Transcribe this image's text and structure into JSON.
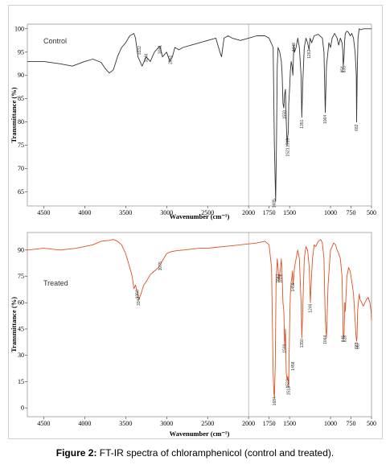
{
  "caption": {
    "label": "Figure 2:",
    "text": " FT-IR spectra of chloramphenicol (control and treated)."
  },
  "chart_data": [
    {
      "type": "line",
      "panel_label": "Control",
      "xlabel": "Wavenumber (cm⁻¹)",
      "ylabel": "Transmittance (%)",
      "xlim": [
        4700,
        500
      ],
      "ylim": [
        62,
        101
      ],
      "x_ticks": [
        4500,
        4000,
        3500,
        3000,
        2500,
        2000,
        1750,
        1500,
        1000,
        750,
        500
      ],
      "y_ticks": [
        100,
        95,
        90,
        85,
        80,
        75,
        70,
        65
      ],
      "y_tick_labels": [
        "100",
        "95",
        "90",
        "85",
        "80",
        "75",
        "70",
        "65"
      ],
      "line_color": "#333333",
      "series": [
        {
          "x": [
            4700,
            4500,
            4300,
            4150,
            4000,
            3900,
            3800,
            3750,
            3700,
            3650,
            3600,
            3550,
            3500,
            3450,
            3400,
            3380,
            3350,
            3300,
            3250,
            3200,
            3150,
            3100,
            3080,
            3050,
            3000,
            2960,
            2930,
            2900,
            2850,
            2800,
            2700,
            2600,
            2500,
            2400,
            2350,
            2330,
            2300,
            2250,
            2200,
            2100,
            2000,
            1900,
            1800,
            1750,
            1700,
            1685,
            1670,
            1660,
            1650,
            1640,
            1620,
            1600,
            1590,
            1580,
            1570,
            1560,
            1550,
            1540,
            1530,
            1522,
            1515,
            1510,
            1500,
            1490,
            1480,
            1470,
            1460,
            1448,
            1440,
            1420,
            1400,
            1380,
            1360,
            1351,
            1340,
            1320,
            1300,
            1280,
            1262,
            1250,
            1230,
            1200,
            1150,
            1100,
            1080,
            1064,
            1050,
            1020,
            1000,
            980,
            950,
            920,
            900,
            880,
            860,
            851,
            845,
            835,
            830,
            820,
            800,
            780,
            760,
            740,
            720,
            700,
            685,
            682,
            675,
            665,
            650,
            630,
            600,
            550,
            500
          ],
          "y": [
            93,
            93,
            92.5,
            92,
            93,
            93.5,
            92.8,
            91.5,
            90.5,
            91.2,
            94,
            96,
            97,
            98.5,
            99,
            98,
            94,
            92,
            94,
            93,
            95,
            96,
            96.2,
            94,
            95,
            93,
            94,
            96,
            95.5,
            96,
            96.5,
            97,
            97.5,
            98,
            95,
            94,
            98,
            98.5,
            98,
            97.5,
            98,
            98.5,
            98.5,
            98,
            96,
            75,
            63,
            75,
            92,
            96,
            95,
            93,
            90,
            84,
            83,
            86,
            87,
            80,
            75,
            77,
            78,
            84,
            87,
            91,
            93,
            92,
            90,
            96.5,
            95,
            96,
            98,
            96,
            90,
            81,
            88,
            96,
            98,
            97,
            95.5,
            98,
            97,
            98.5,
            98.8,
            98,
            95,
            82,
            92,
            97,
            96,
            98,
            99,
            98,
            96.5,
            98,
            97,
            95.5,
            92,
            94,
            97,
            99,
            99.5,
            99.2,
            98.5,
            99,
            98,
            95,
            90,
            80,
            90,
            98,
            100,
            99.8,
            100,
            100,
            100
          ]
        }
      ],
      "peak_labels": [
        {
          "x": 3332,
          "y": 95.8,
          "label": "3332"
        },
        {
          "x": 3246,
          "y": 94.2,
          "label": "3246"
        },
        {
          "x": 3081,
          "y": 96,
          "label": "3081"
        },
        {
          "x": 2951,
          "y": 93.8,
          "label": "2951"
        },
        {
          "x": 1685,
          "y": 63,
          "label": "1685"
        },
        {
          "x": 1559,
          "y": 82,
          "label": "1559"
        },
        {
          "x": 1521,
          "y": 74,
          "label": "1521"
        },
        {
          "x": 1519,
          "y": 76,
          "label": "1519"
        },
        {
          "x": 1448,
          "y": 96.5,
          "label": "1448"
        },
        {
          "x": 1351,
          "y": 80,
          "label": "1351"
        },
        {
          "x": 1262,
          "y": 95,
          "label": "1262"
        },
        {
          "x": 1064,
          "y": 81,
          "label": "1064"
        },
        {
          "x": 851,
          "y": 91.5,
          "label": "851"
        },
        {
          "x": 835,
          "y": 91.5,
          "label": "835"
        },
        {
          "x": 682,
          "y": 79,
          "label": "682"
        }
      ]
    },
    {
      "type": "line",
      "panel_label": "Treated",
      "xlabel": "Wavenumber (cm⁻¹)",
      "ylabel": "Transmittance (%)",
      "xlim": [
        4700,
        500
      ],
      "ylim": [
        -5,
        100
      ],
      "x_ticks": [
        4500,
        4000,
        3500,
        3000,
        2500,
        2000,
        1750,
        1500,
        1000,
        750,
        500
      ],
      "y_ticks": [
        90,
        75,
        60,
        45,
        30,
        15,
        0
      ],
      "y_tick_labels": [
        "90",
        "75",
        "60",
        "45",
        "30",
        "15",
        "0"
      ],
      "line_color": "#e05020",
      "series": [
        {
          "x": [
            4700,
            4500,
            4300,
            4100,
            4000,
            3900,
            3800,
            3700,
            3650,
            3600,
            3550,
            3500,
            3450,
            3420,
            3400,
            3380,
            3360,
            3340,
            3320,
            3300,
            3280,
            3250,
            3200,
            3150,
            3100,
            3075,
            3050,
            3000,
            2950,
            2900,
            2800,
            2700,
            2600,
            2500,
            2400,
            2300,
            2200,
            2100,
            2000,
            1900,
            1800,
            1750,
            1720,
            1700,
            1690,
            1684,
            1675,
            1665,
            1650,
            1640,
            1630,
            1610,
            1600,
            1590,
            1580,
            1570,
            1560,
            1550,
            1540,
            1530,
            1522,
            1512,
            1505,
            1498,
            1490,
            1480,
            1470,
            1465,
            1458,
            1450,
            1440,
            1420,
            1400,
            1380,
            1360,
            1350,
            1340,
            1320,
            1300,
            1280,
            1260,
            1246,
            1235,
            1220,
            1200,
            1180,
            1150,
            1120,
            1100,
            1080,
            1064,
            1050,
            1030,
            1000,
            980,
            960,
            940,
            920,
            900,
            880,
            860,
            850,
            845,
            835,
            826,
            820,
            810,
            800,
            780,
            760,
            740,
            720,
            700,
            690,
            683,
            677,
            670,
            660,
            650,
            640,
            620,
            600,
            580,
            560,
            540,
            520,
            505,
            500
          ],
          "y": [
            90,
            91,
            90,
            91,
            92,
            93,
            95,
            95.5,
            96,
            95,
            93,
            88,
            80,
            75,
            68,
            70,
            66,
            62,
            64,
            67,
            70,
            72,
            76,
            78,
            80,
            82,
            84,
            88,
            89,
            89.5,
            90,
            90.5,
            91,
            91,
            91.5,
            92,
            92.5,
            93,
            93.5,
            94,
            95,
            93,
            80,
            20,
            8,
            6,
            25,
            70,
            85,
            80,
            72,
            80,
            85,
            75,
            60,
            55,
            35,
            45,
            20,
            16,
            18,
            12,
            30,
            50,
            65,
            72,
            75,
            78,
            70,
            74,
            80,
            85,
            90,
            85,
            60,
            40,
            55,
            85,
            92,
            90,
            80,
            60,
            72,
            85,
            93,
            92,
            95,
            96,
            94,
            85,
            50,
            40,
            70,
            90,
            92,
            94,
            93,
            90,
            88,
            85,
            75,
            55,
            40,
            42,
            60,
            55,
            65,
            75,
            80,
            78,
            72,
            65,
            50,
            42,
            38,
            40,
            55,
            60,
            65,
            62,
            60,
            58,
            60,
            62,
            63,
            60,
            55,
            50
          ]
        }
      ],
      "peak_labels": [
        {
          "x": 3358,
          "y": 66,
          "label": "3358"
        },
        {
          "x": 3342,
          "y": 62,
          "label": "3342"
        },
        {
          "x": 3075,
          "y": 82,
          "label": "3075"
        },
        {
          "x": 1684,
          "y": 5,
          "label": "1684"
        },
        {
          "x": 1642,
          "y": 75,
          "label": "1642"
        },
        {
          "x": 1606,
          "y": 75,
          "label": "1606"
        },
        {
          "x": 1560,
          "y": 35,
          "label": "1560"
        },
        {
          "x": 1522,
          "y": 15,
          "label": "1522"
        },
        {
          "x": 1513,
          "y": 11,
          "label": "1513"
        },
        {
          "x": 1459,
          "y": 70,
          "label": "1459"
        },
        {
          "x": 1458,
          "y": 25,
          "label": "1458"
        },
        {
          "x": 1350,
          "y": 38,
          "label": "1350"
        },
        {
          "x": 1246,
          "y": 58,
          "label": "1246"
        },
        {
          "x": 1064,
          "y": 40,
          "label": "1064"
        },
        {
          "x": 845,
          "y": 40,
          "label": "845"
        },
        {
          "x": 826,
          "y": 40,
          "label": "826"
        },
        {
          "x": 683,
          "y": 36,
          "label": "683"
        },
        {
          "x": 667,
          "y": 36,
          "label": "667"
        }
      ]
    }
  ]
}
